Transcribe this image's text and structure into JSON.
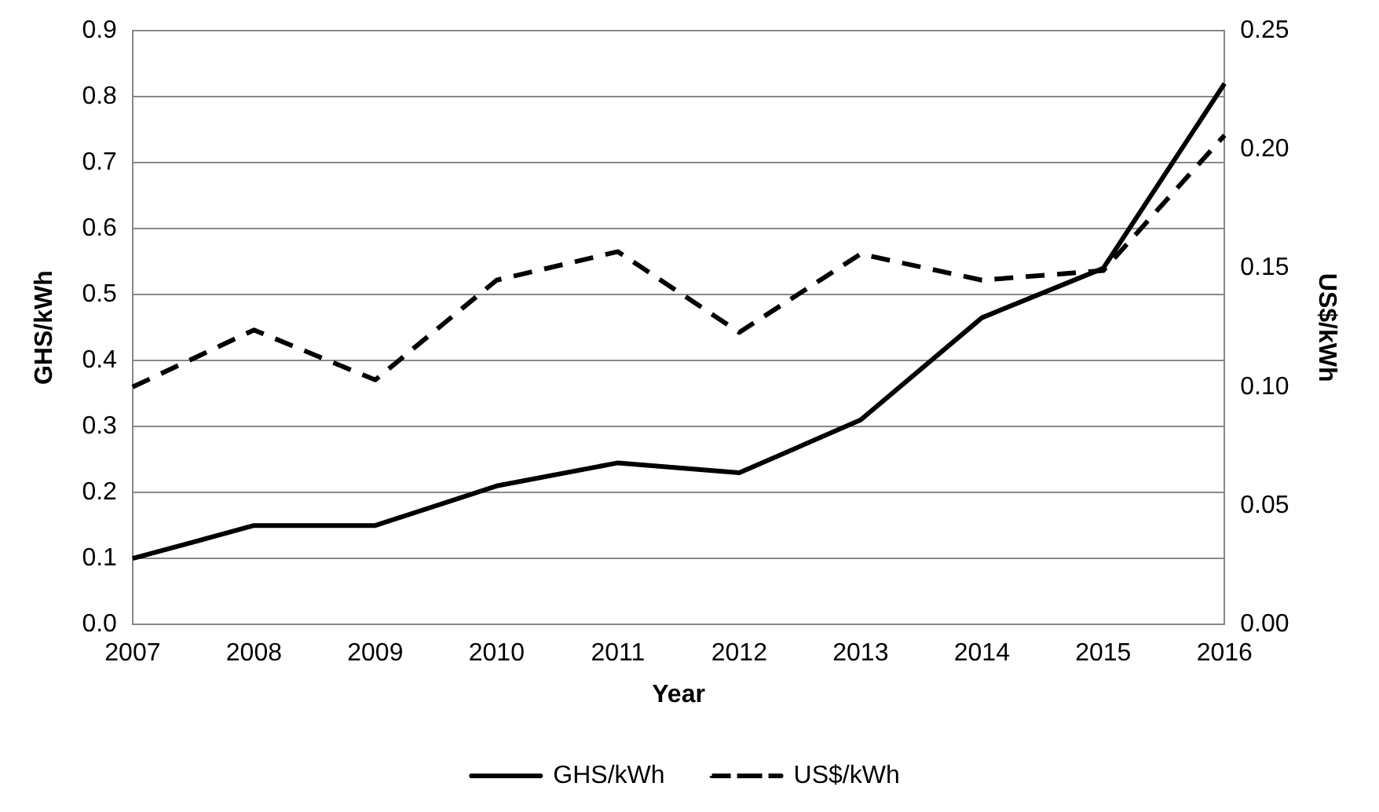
{
  "chart_data": {
    "type": "line",
    "xlabel": "Year",
    "ylabel": "GHS/kWh",
    "y2label": "US$/kWh",
    "categories": [
      "2007",
      "2008",
      "2009",
      "2010",
      "2011",
      "2012",
      "2013",
      "2014",
      "2015",
      "2016"
    ],
    "series": [
      {
        "name": "GHS/kWh",
        "color": "#000000",
        "line_style": "solid",
        "values": [
          0.1,
          0.15,
          0.15,
          0.21,
          0.245,
          0.23,
          0.31,
          0.465,
          0.54,
          0.82
        ]
      },
      {
        "name": "US$/kWh",
        "color": "#000000",
        "line_style": "dashed",
        "axis": "y2",
        "values": [
          0.1,
          0.124,
          0.103,
          0.145,
          0.157,
          0.123,
          0.156,
          0.145,
          0.149,
          0.206
        ]
      }
    ],
    "ylim": [
      0,
      0.9
    ],
    "yticks": [
      {
        "value": 0,
        "label": "0.0"
      },
      {
        "value": 0.1,
        "label": "0.1"
      },
      {
        "value": 0.2,
        "label": "0.2"
      },
      {
        "value": 0.3,
        "label": "0.3"
      },
      {
        "value": 0.4,
        "label": "0.4"
      },
      {
        "value": 0.5,
        "label": "0.5"
      },
      {
        "value": 0.6,
        "label": "0.6"
      },
      {
        "value": 0.7,
        "label": "0.7"
      },
      {
        "value": 0.8,
        "label": "0.8"
      },
      {
        "value": 0.9,
        "label": "0.9"
      }
    ],
    "y2lim": [
      0,
      0.25
    ],
    "y2ticks": [
      {
        "value": 0,
        "label": "0.00"
      },
      {
        "value": 0.05,
        "label": "0.05"
      },
      {
        "value": 0.1,
        "label": "0.10"
      },
      {
        "value": 0.15,
        "label": "0.15"
      },
      {
        "value": 0.2,
        "label": "0.20"
      },
      {
        "value": 0.25,
        "label": "0.25"
      }
    ],
    "grid": "y",
    "legend": "bottom",
    "marker": "none"
  }
}
